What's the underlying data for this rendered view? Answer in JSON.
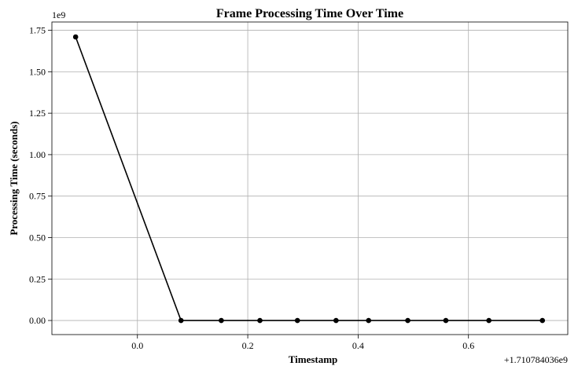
{
  "chart_data": {
    "type": "line",
    "title": "Frame Processing Time Over Time",
    "xlabel": "Timestamp",
    "ylabel": "Processing Time (seconds)",
    "x_offset_label": "+1.710784036e9",
    "y_scale_label": "1e9",
    "xlim": [
      -0.155,
      0.78
    ],
    "ylim": [
      -0.085,
      1.8
    ],
    "xticks": [
      0.0,
      0.2,
      0.4,
      0.6
    ],
    "xtick_labels": [
      "0.0",
      "0.2",
      "0.4",
      "0.6"
    ],
    "yticks": [
      0.0,
      0.25,
      0.5,
      0.75,
      1.0,
      1.25,
      1.5,
      1.75
    ],
    "ytick_labels": [
      "0.00",
      "0.25",
      "0.50",
      "0.75",
      "1.00",
      "1.25",
      "1.50",
      "1.75"
    ],
    "grid": true,
    "line_color": "#000000",
    "series": [
      {
        "x": [
          -0.112,
          0.079,
          0.152,
          0.222,
          0.29,
          0.36,
          0.419,
          0.49,
          0.559,
          0.637,
          0.734
        ],
        "values": [
          1.71,
          0,
          0,
          0,
          0,
          0,
          0,
          0,
          0,
          0,
          0
        ]
      }
    ]
  }
}
